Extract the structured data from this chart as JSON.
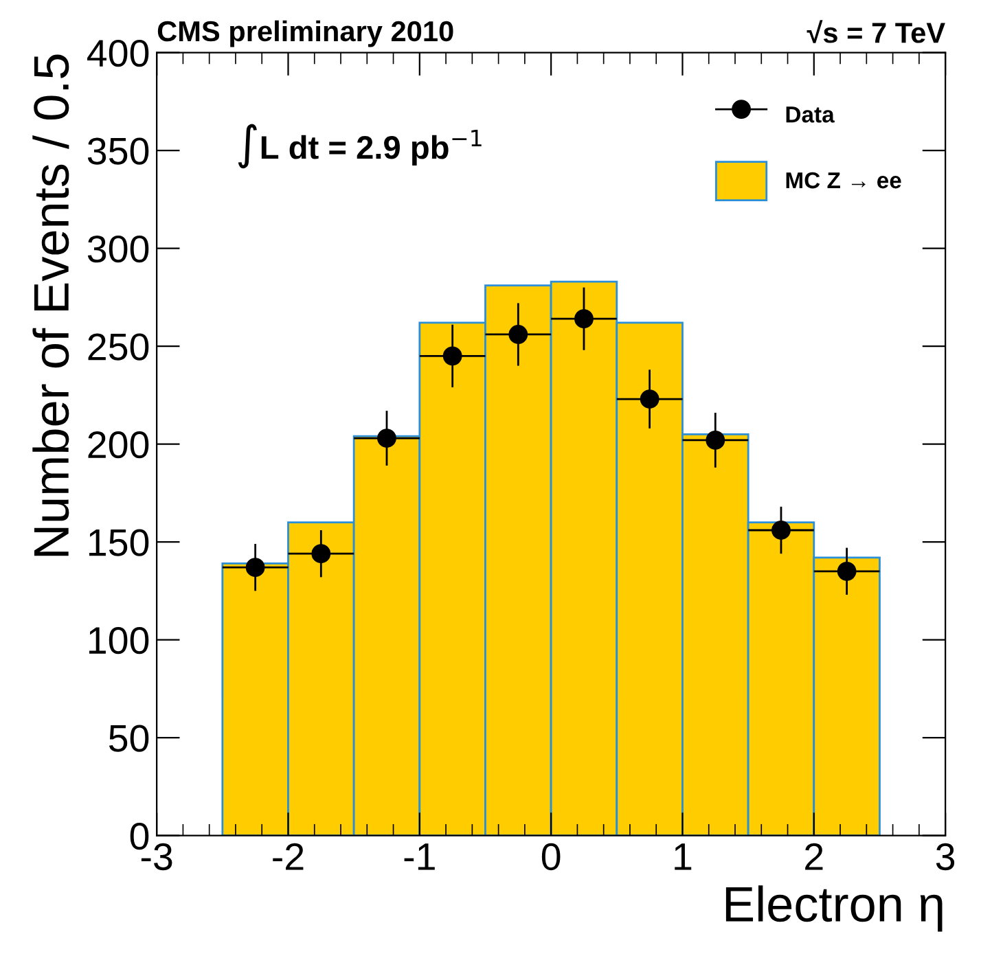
{
  "chart_data": {
    "type": "histogram",
    "title": "CMS preliminary 2010",
    "xlabel": "Electron η",
    "ylabel": "Number of Events / 0.5",
    "annotations": [
      "√s = 7 TeV",
      "∫L dt = 2.9 pb$^{−1}$"
    ],
    "bins": [
      -2.5,
      -2,
      -1.5,
      -1,
      -0.5,
      0,
      0.5,
      1,
      1.5,
      2,
      2.5
    ],
    "series": [
      {
        "name": "MC Z → ee",
        "type": "histogram",
        "color": "#ffcc00",
        "values": [
          139,
          160,
          204,
          262,
          281,
          283,
          262,
          205,
          160,
          142
        ]
      },
      {
        "name": "Data",
        "type": "scatter",
        "color": "#000000",
        "x": [
          -2.25,
          -1.75,
          -1.25,
          -0.75,
          -0.25,
          0.25,
          0.75,
          1.25,
          1.75,
          2.25
        ],
        "values": [
          137,
          144,
          203,
          245,
          256,
          264,
          223,
          202,
          156,
          135
        ],
        "errors": [
          12,
          12,
          14,
          16,
          16,
          16,
          15,
          14,
          12,
          12
        ],
        "xerrors": [
          0.25,
          0.25,
          0.25,
          0.25,
          0.25,
          0.25,
          0.25,
          0.25,
          0.25,
          0.25
        ]
      }
    ],
    "xlim": [
      -3,
      3
    ],
    "ylim": [
      0,
      400
    ],
    "xticks": [
      -3,
      -2,
      -1,
      0,
      1,
      2,
      3
    ],
    "yticks": [
      0,
      50,
      100,
      150,
      200,
      250,
      300,
      350,
      400
    ],
    "grid": false,
    "legend": "top right",
    "marker": "circle"
  }
}
